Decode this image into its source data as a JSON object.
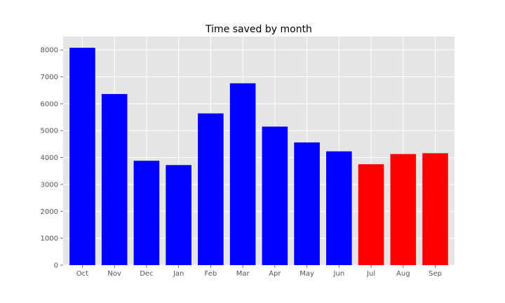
{
  "chart_data": {
    "type": "bar",
    "title": "Time saved by month",
    "xlabel": "",
    "ylabel": "",
    "categories": [
      "Oct",
      "Nov",
      "Dec",
      "Jan",
      "Feb",
      "Mar",
      "Apr",
      "May",
      "Jun",
      "Jul",
      "Aug",
      "Sep"
    ],
    "values": [
      8080,
      6360,
      3880,
      3720,
      5640,
      6760,
      5150,
      4560,
      4230,
      3750,
      4130,
      4160
    ],
    "bar_colors": [
      "#0000ff",
      "#0000ff",
      "#0000ff",
      "#0000ff",
      "#0000ff",
      "#0000ff",
      "#0000ff",
      "#0000ff",
      "#0000ff",
      "#ff0000",
      "#ff0000",
      "#ff0000"
    ],
    "ylim": [
      0,
      8500
    ],
    "yticks": [
      0,
      1000,
      2000,
      3000,
      4000,
      5000,
      6000,
      7000,
      8000
    ],
    "grid": true,
    "legend": "none",
    "background_color": "#e5e5e5"
  }
}
